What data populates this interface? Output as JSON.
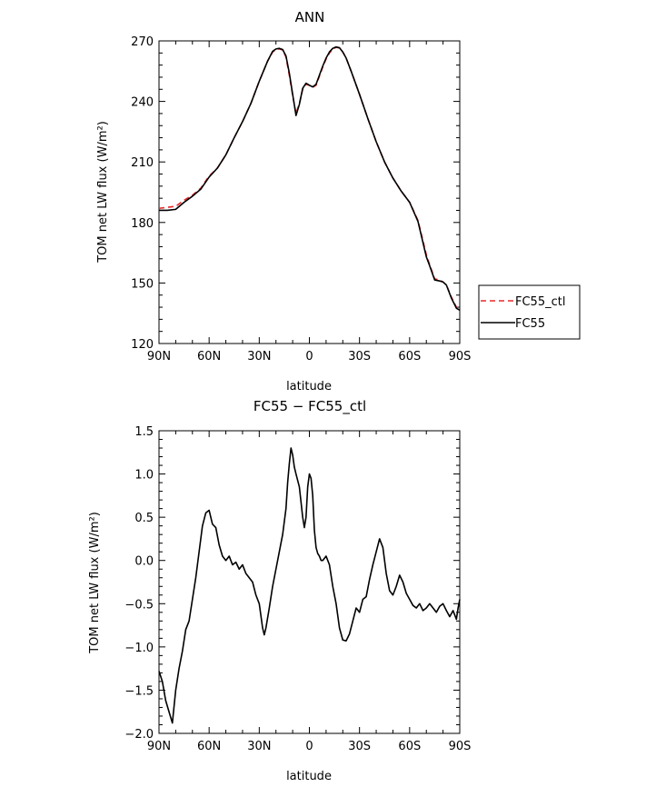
{
  "chart_data": [
    {
      "type": "line",
      "title": "ANN",
      "xlabel": "latitude",
      "ylabel": "TOM net LW flux (W/m²)",
      "xlim": [
        90,
        -90
      ],
      "ylim": [
        120,
        270
      ],
      "xticks": [
        90,
        60,
        30,
        0,
        -30,
        -60,
        -90
      ],
      "xtick_labels": [
        "90N",
        "60N",
        "30N",
        "0",
        "30S",
        "60S",
        "90S"
      ],
      "yticks": [
        120,
        150,
        180,
        210,
        240,
        270
      ],
      "ytick_labels": [
        "120",
        "150",
        "180",
        "210",
        "240",
        "270"
      ],
      "legend": "right",
      "series": [
        {
          "name": "FC55_ctl",
          "color": "#e8282a",
          "dash": "dashed",
          "x": [
            90,
            85,
            80,
            75,
            70,
            65,
            60,
            55,
            50,
            45,
            40,
            35,
            30,
            25,
            22,
            20,
            18,
            16,
            14,
            12,
            10,
            8,
            6,
            4,
            2,
            0,
            -2,
            -4,
            -6,
            -8,
            -10,
            -12,
            -14,
            -16,
            -18,
            -20,
            -22,
            -25,
            -30,
            -35,
            -40,
            -45,
            -50,
            -55,
            -60,
            -65,
            -70,
            -72,
            -75,
            -78,
            -80,
            -82,
            -85,
            -88,
            -90
          ],
          "values": [
            187,
            187.5,
            188,
            191,
            193.5,
            197,
            203,
            207,
            213.5,
            222,
            230,
            239,
            250,
            260,
            264.5,
            265.8,
            266,
            265.5,
            262,
            253,
            243,
            234,
            239,
            246,
            248.5,
            248,
            247,
            248,
            252.5,
            257,
            261,
            264,
            266,
            266.8,
            266.5,
            264.5,
            261.5,
            255,
            243.5,
            231.5,
            220,
            210,
            202,
            195.5,
            190,
            181,
            164,
            159,
            152,
            151.5,
            150.5,
            149,
            143,
            138,
            137
          ]
        },
        {
          "name": "FC55",
          "color": "#000000",
          "dash": "solid",
          "x": [
            90,
            85,
            80,
            75,
            70,
            65,
            60,
            55,
            50,
            45,
            40,
            35,
            30,
            25,
            22,
            20,
            18,
            16,
            14,
            12,
            10,
            8,
            6,
            4,
            2,
            0,
            -2,
            -4,
            -6,
            -8,
            -10,
            -12,
            -14,
            -16,
            -18,
            -20,
            -22,
            -25,
            -30,
            -35,
            -40,
            -45,
            -50,
            -55,
            -60,
            -65,
            -70,
            -72,
            -75,
            -78,
            -80,
            -82,
            -85,
            -88,
            -90
          ],
          "values": [
            186,
            186,
            186.5,
            190,
            193,
            196.5,
            202.5,
            207,
            213.5,
            222,
            230,
            239,
            250,
            260,
            264.8,
            266,
            266.3,
            265.7,
            262.5,
            254,
            243.5,
            233,
            238.5,
            246.5,
            249,
            248,
            247.2,
            248.5,
            253,
            257.5,
            261.5,
            264.5,
            266.3,
            267,
            266.6,
            264.5,
            261.5,
            255,
            243.5,
            231.5,
            220,
            210,
            202,
            195.5,
            190,
            180.5,
            163,
            158.5,
            151.5,
            151,
            150.5,
            149,
            142.5,
            137.5,
            136.5
          ]
        }
      ]
    },
    {
      "type": "line",
      "title": "FC55 − FC55_ctl",
      "xlabel": "latitude",
      "ylabel": "TOM net LW flux (W/m²)",
      "xlim": [
        90,
        -90
      ],
      "ylim": [
        -2.0,
        1.5
      ],
      "xticks": [
        90,
        60,
        30,
        0,
        -30,
        -60,
        -90
      ],
      "xtick_labels": [
        "90N",
        "60N",
        "30N",
        "0",
        "30S",
        "60S",
        "90S"
      ],
      "yticks": [
        -2.0,
        -1.5,
        -1.0,
        -0.5,
        0.0,
        0.5,
        1.0,
        1.5
      ],
      "ytick_labels": [
        "−2.0",
        "−1.5",
        "−1.0",
        "−0.5",
        "0.0",
        "0.5",
        "1.0",
        "1.5"
      ],
      "series": [
        {
          "color": "#000000",
          "x": [
            90,
            88,
            86,
            84,
            82,
            80,
            78,
            76,
            74,
            72,
            70,
            68,
            66,
            64,
            62,
            60,
            58,
            56,
            54,
            52,
            50,
            48,
            46,
            44,
            42,
            40,
            38,
            36,
            34,
            32,
            30,
            28,
            27,
            26,
            24,
            22,
            20,
            18,
            16,
            14,
            13,
            12,
            11,
            10,
            9,
            8,
            6,
            4,
            3,
            2,
            1,
            0,
            -1,
            -2,
            -3,
            -4,
            -5,
            -6,
            -7,
            -8,
            -10,
            -12,
            -14,
            -16,
            -18,
            -20,
            -22,
            -24,
            -26,
            -28,
            -30,
            -32,
            -34,
            -36,
            -38,
            -40,
            -42,
            -44,
            -46,
            -48,
            -50,
            -52,
            -54,
            -56,
            -58,
            -60,
            -62,
            -64,
            -66,
            -68,
            -70,
            -72,
            -74,
            -76,
            -78,
            -80,
            -82,
            -84,
            -86,
            -88,
            -89,
            -90
          ],
          "values": [
            -1.28,
            -1.4,
            -1.62,
            -1.75,
            -1.88,
            -1.5,
            -1.25,
            -1.05,
            -0.8,
            -0.7,
            -0.45,
            -0.2,
            0.1,
            0.4,
            0.55,
            0.58,
            0.42,
            0.38,
            0.18,
            0.05,
            0.0,
            0.05,
            -0.05,
            -0.02,
            -0.1,
            -0.05,
            -0.15,
            -0.2,
            -0.25,
            -0.4,
            -0.5,
            -0.78,
            -0.86,
            -0.78,
            -0.55,
            -0.3,
            -0.1,
            0.1,
            0.3,
            0.6,
            0.9,
            1.12,
            1.3,
            1.22,
            1.08,
            1.0,
            0.85,
            0.5,
            0.38,
            0.5,
            0.85,
            1.0,
            0.95,
            0.75,
            0.35,
            0.15,
            0.08,
            0.05,
            0.0,
            0.0,
            0.05,
            -0.05,
            -0.3,
            -0.5,
            -0.78,
            -0.92,
            -0.93,
            -0.85,
            -0.7,
            -0.55,
            -0.6,
            -0.45,
            -0.42,
            -0.22,
            -0.05,
            0.1,
            0.25,
            0.15,
            -0.15,
            -0.35,
            -0.4,
            -0.3,
            -0.17,
            -0.25,
            -0.38,
            -0.45,
            -0.52,
            -0.55,
            -0.5,
            -0.58,
            -0.55,
            -0.5,
            -0.55,
            -0.6,
            -0.53,
            -0.5,
            -0.58,
            -0.65,
            -0.58,
            -0.68,
            -0.55,
            -0.45
          ]
        }
      ]
    }
  ]
}
